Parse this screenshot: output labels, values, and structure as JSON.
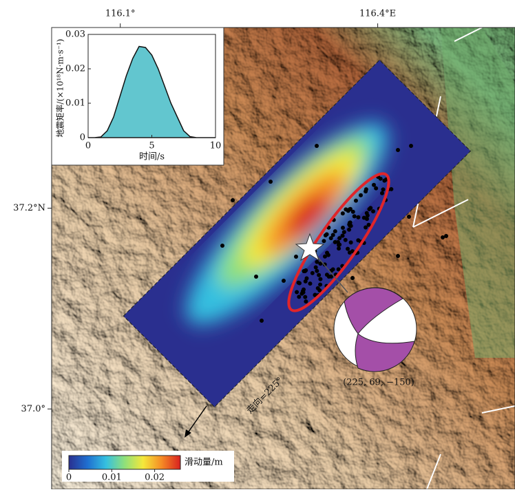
{
  "map": {
    "xlim": [
      116.02,
      116.56
    ],
    "ylim": [
      36.92,
      37.38
    ],
    "xticks": [
      {
        "value": 116.1,
        "label": "116.1°"
      },
      {
        "value": 116.4,
        "label": "116.4°E"
      }
    ],
    "yticks": [
      {
        "value": 37.2,
        "label": "37.2°N"
      },
      {
        "value": 37.0,
        "label": "37.0°"
      }
    ],
    "strike_label": "走向=225°",
    "mechanism_label": "(225, 69, −150)",
    "colorbar": {
      "label": "滑动量/m",
      "clim": [
        0,
        0.026
      ],
      "ticks": [
        0,
        0.01,
        0.02
      ],
      "colors": [
        "#2a2f8f",
        "#1f6fd0",
        "#35c0e0",
        "#8fe07a",
        "#f5e83a",
        "#f58a25",
        "#d8201f"
      ]
    }
  },
  "chart_data": {
    "type": "area",
    "xlabel": "时间/s",
    "ylabel": "地震矩率/(×10¹⁸N·m·s⁻¹)",
    "color": "#62c6cf",
    "x": [
      0,
      0.5,
      1,
      1.5,
      2,
      2.5,
      3,
      3.5,
      4,
      4.5,
      5,
      5.5,
      6,
      6.5,
      7,
      7.5,
      8,
      8.5,
      9,
      9.5,
      10
    ],
    "values": [
      0,
      0,
      0.0002,
      0.002,
      0.006,
      0.012,
      0.018,
      0.023,
      0.0265,
      0.0262,
      0.024,
      0.02,
      0.015,
      0.01,
      0.006,
      0.002,
      0.0003,
      0,
      0,
      0,
      0
    ],
    "xlim": [
      0,
      10
    ],
    "ylim": [
      0,
      0.03
    ],
    "xticks": [
      0,
      5,
      10
    ],
    "yticks": [
      0,
      0.01,
      0.02,
      0.03
    ]
  }
}
